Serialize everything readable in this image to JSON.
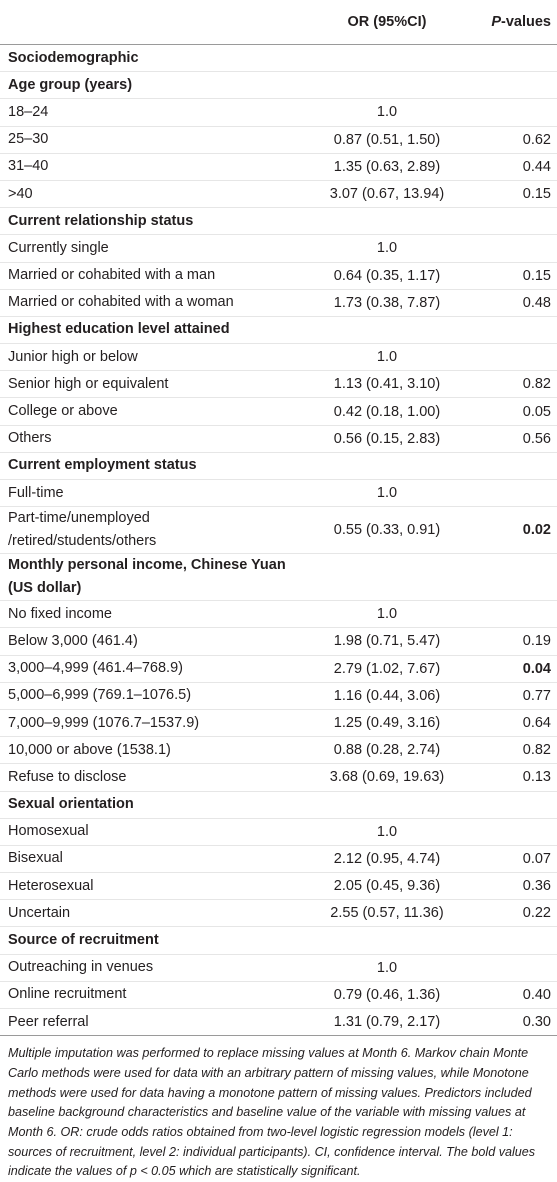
{
  "table": {
    "header": [
      "",
      "OR (95%CI)",
      "P-values"
    ],
    "rows": [
      {
        "label": "Sociodemographic",
        "section": true
      },
      {
        "label": "Age group (years)",
        "section": true
      },
      {
        "label": "18–24",
        "or": "1.0"
      },
      {
        "label": "25–30",
        "or": "0.87 (0.51, 1.50)",
        "p": "0.62"
      },
      {
        "label": "31–40",
        "or": "1.35 (0.63, 2.89)",
        "p": "0.44"
      },
      {
        "label": ">40",
        "or": "3.07 (0.67, 13.94)",
        "p": "0.15"
      },
      {
        "label": "Current relationship status",
        "section": true
      },
      {
        "label": "Currently single",
        "or": "1.0"
      },
      {
        "label": "Married or cohabited with a man",
        "or": "0.64 (0.35, 1.17)",
        "p": "0.15"
      },
      {
        "label": "Married or cohabited with a woman",
        "or": "1.73 (0.38, 7.87)",
        "p": "0.48"
      },
      {
        "label": "Highest education level attained",
        "section": true
      },
      {
        "label": "Junior high or below",
        "or": "1.0"
      },
      {
        "label": "Senior high or equivalent",
        "or": "1.13 (0.41, 3.10)",
        "p": "0.82"
      },
      {
        "label": "College or above",
        "or": "0.42 (0.18, 1.00)",
        "p": "0.05"
      },
      {
        "label": "Others",
        "or": "0.56 (0.15, 2.83)",
        "p": "0.56"
      },
      {
        "label": "Current employment status",
        "section": true
      },
      {
        "label": "Full-time",
        "or": "1.0"
      },
      {
        "label": "Part-time/unemployed\n/retired/students/others",
        "or": "0.55 (0.33, 0.91)",
        "p": "0.02",
        "p_bold": true
      },
      {
        "label": "Monthly personal income, Chinese Yuan (US dollar)",
        "section": true
      },
      {
        "label": "No fixed income",
        "or": "1.0"
      },
      {
        "label": "Below 3,000 (461.4)",
        "or": "1.98 (0.71, 5.47)",
        "p": "0.19"
      },
      {
        "label": "3,000–4,999 (461.4–768.9)",
        "or": "2.79 (1.02, 7.67)",
        "p": "0.04",
        "p_bold": true
      },
      {
        "label": "5,000–6,999 (769.1–1076.5)",
        "or": "1.16 (0.44, 3.06)",
        "p": "0.77"
      },
      {
        "label": "7,000–9,999 (1076.7–1537.9)",
        "or": "1.25 (0.49, 3.16)",
        "p": "0.64"
      },
      {
        "label": "10,000 or above (1538.1)",
        "or": "0.88 (0.28, 2.74)",
        "p": "0.82"
      },
      {
        "label": "Refuse to disclose",
        "or": "3.68 (0.69, 19.63)",
        "p": "0.13"
      },
      {
        "label": "Sexual orientation",
        "section": true
      },
      {
        "label": "Homosexual",
        "or": "1.0"
      },
      {
        "label": "Bisexual",
        "or": "2.12 (0.95, 4.74)",
        "p": "0.07"
      },
      {
        "label": "Heterosexual",
        "or": "2.05 (0.45, 9.36)",
        "p": "0.36"
      },
      {
        "label": "Uncertain",
        "or": "2.55 (0.57, 11.36)",
        "p": "0.22"
      },
      {
        "label": "Source of recruitment",
        "section": true
      },
      {
        "label": "Outreaching in venues",
        "or": "1.0"
      },
      {
        "label": "Online recruitment",
        "or": "0.79 (0.46, 1.36)",
        "p": "0.40"
      },
      {
        "label": "Peer referral",
        "or": "1.31 (0.79, 2.17)",
        "p": "0.30"
      }
    ],
    "footnote": "Multiple imputation was performed to replace missing values at Month 6. Markov chain Monte Carlo methods were used for data with an arbitrary pattern of missing values, while Monotone methods were used for data having a monotone pattern of missing values. Predictors included baseline background characteristics and baseline value of the variable with missing values at Month 6. OR: crude odds ratios obtained from two-level logistic regression models (level 1: sources of recruitment, level 2: individual participants). CI, confidence interval. The bold values indicate the values of p < 0.05 which are statistically significant."
  }
}
